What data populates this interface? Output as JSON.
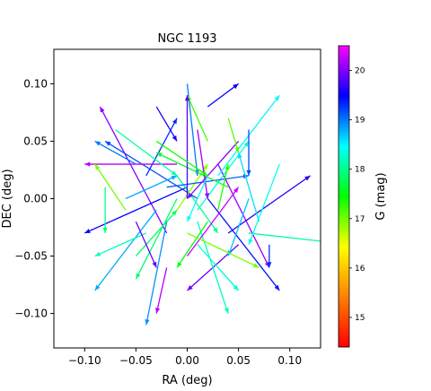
{
  "chart_data": {
    "type": "vector-field",
    "title": "NGC 1193",
    "xlabel": "RA (deg)",
    "ylabel": "DEC (deg)",
    "xlim": [
      -0.13,
      0.13
    ],
    "ylim": [
      -0.13,
      0.13
    ],
    "x_ticks": [
      -0.1,
      -0.05,
      0.0,
      0.05,
      0.1
    ],
    "x_tick_labels": [
      "−0.10",
      "−0.05",
      "0.00",
      "0.05",
      "0.10"
    ],
    "y_ticks": [
      0.1,
      0.05,
      0.0,
      -0.05,
      -0.1
    ],
    "y_tick_labels": [
      "0.10",
      "0.05",
      "0.00",
      "−0.05",
      "−0.10"
    ],
    "colorbar": {
      "label": "G (mag)",
      "range": [
        14.4,
        20.5
      ],
      "ticks": [
        15,
        16,
        17,
        18,
        19,
        20
      ],
      "tick_labels": [
        "15",
        "16",
        "17",
        "18",
        "19",
        "20"
      ],
      "colormap": "gist_rainbow",
      "colors_low_to_high": [
        "#ff0000",
        "#ff7f00",
        "#ffff00",
        "#00ff00",
        "#00ffff",
        "#0000ff",
        "#ff00ff"
      ]
    },
    "arrows": [
      {
        "x": -0.02,
        "y": -0.03,
        "dx": -0.065,
        "dy": 0.11,
        "g": 20.0
      },
      {
        "x": 0.0,
        "y": 0.01,
        "dx": -0.1,
        "dy": -0.04,
        "g": 19.5
      },
      {
        "x": 0.01,
        "y": 0.0,
        "dx": -0.09,
        "dy": 0.05,
        "g": 19.2
      },
      {
        "x": 0.0,
        "y": 0.1,
        "dx": 0.01,
        "dy": -0.08,
        "g": 19.0
      },
      {
        "x": -0.03,
        "y": -0.01,
        "dx": -0.06,
        "dy": -0.07,
        "g": 18.8
      },
      {
        "x": 0.02,
        "y": 0.0,
        "dx": 0.07,
        "dy": -0.08,
        "g": 19.4
      },
      {
        "x": 0.03,
        "y": 0.03,
        "dx": 0.05,
        "dy": -0.09,
        "g": 20.1
      },
      {
        "x": 0.04,
        "y": -0.03,
        "dx": 0.08,
        "dy": 0.05,
        "g": 19.6
      },
      {
        "x": 0.05,
        "y": -0.04,
        "dx": -0.05,
        "dy": -0.04,
        "g": 19.9
      },
      {
        "x": -0.04,
        "y": 0.02,
        "dx": 0.03,
        "dy": 0.05,
        "g": 19.3
      },
      {
        "x": -0.01,
        "y": 0.03,
        "dx": -0.09,
        "dy": 0.0,
        "g": 20.2
      },
      {
        "x": 0.06,
        "y": -0.03,
        "dx": 0.1,
        "dy": -0.01,
        "g": 18.1
      },
      {
        "x": 0.01,
        "y": -0.02,
        "dx": 0.03,
        "dy": -0.08,
        "g": 18.2
      },
      {
        "x": 0.03,
        "y": 0.02,
        "dx": 0.06,
        "dy": 0.07,
        "g": 18.5
      },
      {
        "x": -0.01,
        "y": 0.0,
        "dx": -0.04,
        "dy": -0.07,
        "g": 17.9
      },
      {
        "x": -0.01,
        "y": 0.02,
        "dx": 0.04,
        "dy": -0.05,
        "g": 18.0
      },
      {
        "x": 0.01,
        "y": -0.01,
        "dx": 0.05,
        "dy": 0.06,
        "g": 18.3
      },
      {
        "x": -0.06,
        "y": -0.01,
        "dx": -0.03,
        "dy": 0.04,
        "g": 17.0
      },
      {
        "x": 0.02,
        "y": 0.05,
        "dx": -0.02,
        "dy": 0.04,
        "g": 17.2
      },
      {
        "x": -0.01,
        "y": -0.01,
        "dx": 0.03,
        "dy": 0.04,
        "g": 16.9
      },
      {
        "x": 0.02,
        "y": -0.02,
        "dx": -0.03,
        "dy": -0.04,
        "g": 17.5
      },
      {
        "x": -0.05,
        "y": -0.05,
        "dx": 0.04,
        "dy": 0.04,
        "g": 17.8
      },
      {
        "x": 0.03,
        "y": -0.06,
        "dx": 0.02,
        "dy": -0.02,
        "g": 18.2
      },
      {
        "x": -0.02,
        "y": 0.01,
        "dx": 0.08,
        "dy": 0.01,
        "g": 19.1
      },
      {
        "x": 0.0,
        "y": -0.05,
        "dx": 0.05,
        "dy": 0.06,
        "g": 20.3
      },
      {
        "x": 0.07,
        "y": -0.02,
        "dx": -0.02,
        "dy": 0.06,
        "g": 18.6
      },
      {
        "x": -0.05,
        "y": 0.03,
        "dx": -0.04,
        "dy": 0.02,
        "g": 19.0
      },
      {
        "x": 0.04,
        "y": 0.01,
        "dx": -0.07,
        "dy": 0.03,
        "g": 17.6
      },
      {
        "x": -0.02,
        "y": -0.02,
        "dx": -0.02,
        "dy": -0.09,
        "g": 18.9
      },
      {
        "x": 0.05,
        "y": 0.05,
        "dx": -0.05,
        "dy": -0.05,
        "g": 20.0
      },
      {
        "x": 0.09,
        "y": 0.03,
        "dx": -0.03,
        "dy": -0.07,
        "g": 18.4
      },
      {
        "x": -0.07,
        "y": 0.06,
        "dx": 0.06,
        "dy": -0.04,
        "g": 18.1
      },
      {
        "x": 0.01,
        "y": 0.06,
        "dx": 0.01,
        "dy": -0.06,
        "g": 20.1
      },
      {
        "x": 0.0,
        "y": 0.0,
        "dx": 0.0,
        "dy": 0.09,
        "g": 19.8
      },
      {
        "x": -0.03,
        "y": 0.05,
        "dx": 0.05,
        "dy": -0.03,
        "g": 17.4
      },
      {
        "x": 0.06,
        "y": 0.0,
        "dx": -0.02,
        "dy": -0.05,
        "g": 18.7
      },
      {
        "x": -0.08,
        "y": 0.01,
        "dx": 0.0,
        "dy": -0.04,
        "g": 18.0
      },
      {
        "x": 0.02,
        "y": 0.08,
        "dx": 0.03,
        "dy": 0.02,
        "g": 19.5
      },
      {
        "x": -0.04,
        "y": -0.03,
        "dx": -0.05,
        "dy": -0.02,
        "g": 18.2
      },
      {
        "x": 0.0,
        "y": -0.03,
        "dx": 0.07,
        "dy": -0.03,
        "g": 17.0
      },
      {
        "x": 0.08,
        "y": -0.04,
        "dx": 0.0,
        "dy": -0.02,
        "g": 19.3
      },
      {
        "x": -0.05,
        "y": -0.02,
        "dx": 0.02,
        "dy": -0.04,
        "g": 19.9
      },
      {
        "x": 0.02,
        "y": 0.02,
        "dx": -0.02,
        "dy": -0.04,
        "g": 18.4
      },
      {
        "x": -0.03,
        "y": 0.08,
        "dx": 0.02,
        "dy": -0.03,
        "g": 19.6
      },
      {
        "x": 0.04,
        "y": 0.07,
        "dx": 0.01,
        "dy": -0.03,
        "g": 17.1
      },
      {
        "x": -0.02,
        "y": -0.06,
        "dx": -0.01,
        "dy": -0.04,
        "g": 20.2
      },
      {
        "x": 0.01,
        "y": -0.04,
        "dx": 0.04,
        "dy": -0.04,
        "g": 18.3
      },
      {
        "x": 0.06,
        "y": 0.06,
        "dx": 0.0,
        "dy": -0.04,
        "g": 19.2
      },
      {
        "x": -0.06,
        "y": 0.0,
        "dx": 0.05,
        "dy": 0.02,
        "g": 18.8
      },
      {
        "x": 0.03,
        "y": -0.01,
        "dx": 0.01,
        "dy": 0.04,
        "g": 17.3
      }
    ]
  }
}
